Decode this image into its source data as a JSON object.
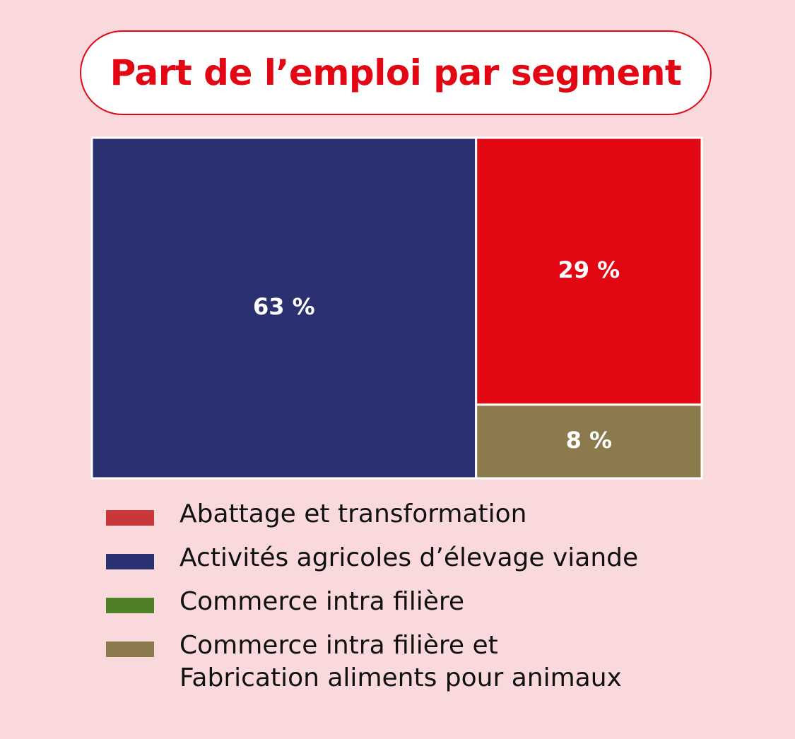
{
  "chart_data": {
    "type": "treemap",
    "title": "Part de l’emploi par segment",
    "categories": [
      "Abattage et transformation",
      "Activités agricoles d’élevage viande",
      "Commerce intra filière",
      "Commerce intra filière et\nFabrication aliments pour animaux"
    ],
    "values": [
      29,
      63,
      null,
      8
    ],
    "value_labels": [
      "29 %",
      "63 %",
      null,
      "8 %"
    ],
    "colors": [
      "#c8383b",
      "#2b3170",
      "#4f7f26",
      "#8b7a4b"
    ],
    "tile_colors": [
      "#e30613",
      "#2b3170",
      "#4f7f26",
      "#8b7a4b"
    ]
  }
}
